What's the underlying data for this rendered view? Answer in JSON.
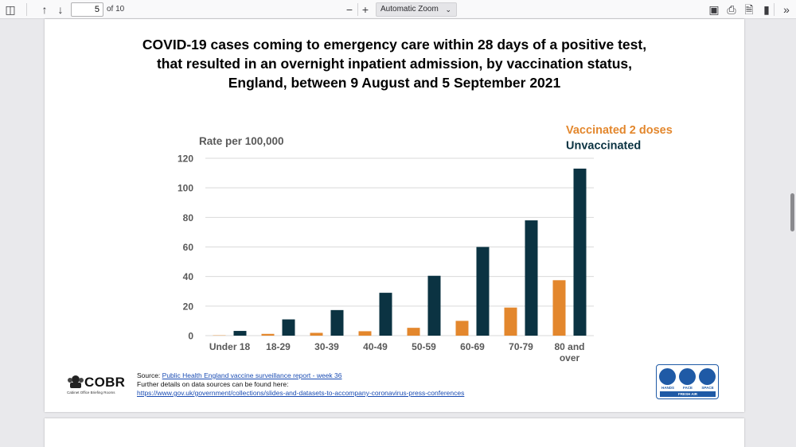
{
  "toolbar": {
    "page_value": "5",
    "page_count": "of 10",
    "zoom_label": "Automatic Zoom",
    "icons": [
      "sidebar-toggle-icon",
      "arrow-up-icon",
      "arrow-down-icon",
      "zoom-out-icon",
      "zoom-in-icon",
      "presentation-icon",
      "print-icon",
      "save-icon",
      "bookmark-icon",
      "more-tools-icon"
    ]
  },
  "slide": {
    "title_lines": [
      "COVID-19 cases coming to emergency care within 28 days of a positive test,",
      "that resulted in an overnight inpatient admission, by vaccination status,",
      "England, between 9 August and 5 September 2021"
    ],
    "cobr_name": "COBR",
    "cobr_subtitle": "Cabinet Office Briefing Rooms",
    "source_prefix": "Source: ",
    "source_link": "Public Health England vaccine surveillance report - week 36",
    "further_details": "Further details on data sources can be found here:",
    "details_link": "https://www.gov.uk/government/collections/slides-and-datasets-to-accompany-coronavirus-press-conferences",
    "hfs_labels": [
      "HANDS",
      "FACE",
      "SPACE"
    ],
    "hfs_bar": "FRESH AIR"
  },
  "colors": {
    "vaccinated": "#e3872d",
    "unvaccinated": "#0b3342",
    "grid": "#d9d9d9",
    "axis_text": "#595959"
  },
  "chart_data": {
    "type": "bar",
    "ylabel": "Rate per 100,000",
    "ylim": [
      0,
      120
    ],
    "yticks": [
      0,
      20,
      40,
      60,
      80,
      100,
      120
    ],
    "grid": true,
    "legend_position": "top-right",
    "categories": [
      "Under 18",
      "18-29",
      "30-39",
      "40-49",
      "50-59",
      "60-69",
      "70-79",
      "80 and over"
    ],
    "series": [
      {
        "name": "Vaccinated 2 doses",
        "values": [
          0.2,
          1.2,
          1.9,
          3.0,
          5.3,
          10.0,
          19.0,
          37.5
        ]
      },
      {
        "name": "Unvaccinated",
        "values": [
          3.2,
          11.0,
          17.3,
          29.0,
          40.5,
          60.0,
          78.0,
          113.0
        ]
      }
    ]
  }
}
